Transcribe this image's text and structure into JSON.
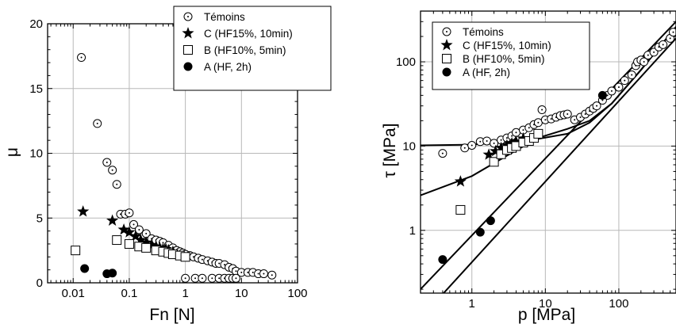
{
  "chart_data": [
    {
      "type": "scatter",
      "xlabel": "Fn [N]",
      "ylabel": "μ",
      "xscale": "log",
      "xlim": [
        0.0035,
        100
      ],
      "ylim": [
        0,
        20
      ],
      "xticks": [
        "0.01",
        "0.1",
        "1",
        "10",
        "100"
      ],
      "yticks": [
        "0",
        "5",
        "10",
        "15",
        "20"
      ],
      "grid": true,
      "legend_position": "top-right",
      "series": [
        {
          "name": "Témoins",
          "marker": "dotted-circle",
          "points": [
            [
              0.014,
              17.4
            ],
            [
              0.027,
              12.3
            ],
            [
              0.04,
              9.3
            ],
            [
              0.05,
              8.7
            ],
            [
              0.06,
              7.6
            ],
            [
              0.07,
              5.3
            ],
            [
              0.085,
              5.3
            ],
            [
              0.1,
              5.4
            ],
            [
              0.12,
              4.5
            ],
            [
              0.15,
              4.1
            ],
            [
              0.2,
              3.8
            ],
            [
              0.25,
              3.4
            ],
            [
              0.3,
              3.3
            ],
            [
              0.35,
              3.2
            ],
            [
              0.4,
              3.1
            ],
            [
              0.5,
              2.9
            ],
            [
              0.6,
              2.7
            ],
            [
              0.7,
              2.5
            ],
            [
              0.8,
              2.4
            ],
            [
              0.9,
              2.3
            ],
            [
              1.0,
              2.2
            ],
            [
              1.2,
              2.1
            ],
            [
              1.4,
              2.0
            ],
            [
              1.7,
              1.9
            ],
            [
              2.0,
              1.8
            ],
            [
              2.5,
              1.7
            ],
            [
              3.0,
              1.6
            ],
            [
              3.5,
              1.5
            ],
            [
              4.0,
              1.5
            ],
            [
              5.0,
              1.4
            ],
            [
              6.0,
              1.2
            ],
            [
              7.0,
              1.1
            ],
            [
              8.0,
              0.9
            ],
            [
              10,
              0.8
            ],
            [
              13,
              0.8
            ],
            [
              16,
              0.8
            ],
            [
              20,
              0.7
            ],
            [
              25,
              0.7
            ],
            [
              35,
              0.6
            ],
            [
              1.0,
              0.35
            ],
            [
              1.5,
              0.35
            ],
            [
              2.0,
              0.35
            ],
            [
              3.0,
              0.35
            ],
            [
              4.0,
              0.35
            ],
            [
              5.0,
              0.35
            ],
            [
              6.0,
              0.35
            ],
            [
              7.0,
              0.35
            ],
            [
              8.0,
              0.35
            ]
          ]
        },
        {
          "name": "C (HF15%, 10min)",
          "marker": "star",
          "points": [
            [
              0.015,
              5.5
            ],
            [
              0.05,
              4.8
            ],
            [
              0.08,
              4.1
            ],
            [
              0.1,
              3.9
            ],
            [
              0.13,
              3.6
            ],
            [
              0.16,
              3.3
            ],
            [
              0.2,
              3.1
            ],
            [
              0.25,
              2.9
            ],
            [
              0.3,
              2.8
            ],
            [
              0.35,
              2.7
            ],
            [
              0.4,
              2.6
            ],
            [
              0.45,
              2.6
            ],
            [
              0.5,
              2.5
            ],
            [
              0.6,
              2.4
            ]
          ]
        },
        {
          "name": "B (HF10%, 5min)",
          "marker": "square",
          "points": [
            [
              0.011,
              2.5
            ],
            [
              0.06,
              3.3
            ],
            [
              0.1,
              3.0
            ],
            [
              0.15,
              2.8
            ],
            [
              0.2,
              2.7
            ],
            [
              0.3,
              2.5
            ],
            [
              0.4,
              2.4
            ],
            [
              0.5,
              2.3
            ],
            [
              0.6,
              2.2
            ],
            [
              0.8,
              2.1
            ],
            [
              1.0,
              2.0
            ]
          ]
        },
        {
          "name": "A (HF, 2h)",
          "marker": "dot",
          "points": [
            [
              0.016,
              1.1
            ],
            [
              0.04,
              0.7
            ],
            [
              0.05,
              0.75
            ]
          ]
        }
      ]
    },
    {
      "type": "scatter",
      "xlabel": "p [MPa]",
      "ylabel": "τ [MPa]",
      "xscale": "log",
      "yscale": "log",
      "xlim": [
        0.2,
        600
      ],
      "ylim": [
        0.18,
        400
      ],
      "xticks": [
        "1",
        "10",
        "100"
      ],
      "yticks": [
        "1",
        "10",
        "100"
      ],
      "grid": true,
      "legend_position": "top-left",
      "series": [
        {
          "name": "Témoins",
          "marker": "dotted-circle",
          "points": [
            [
              0.4,
              8.2
            ],
            [
              0.8,
              9.5
            ],
            [
              1.0,
              10.2
            ],
            [
              1.3,
              11.3
            ],
            [
              1.6,
              11.5
            ],
            [
              2.0,
              10.8
            ],
            [
              2.5,
              11.8
            ],
            [
              3.0,
              12.5
            ],
            [
              3.5,
              13.2
            ],
            [
              4.0,
              14.5
            ],
            [
              5.0,
              15.5
            ],
            [
              6.0,
              16.5
            ],
            [
              7.0,
              18.0
            ],
            [
              8.0,
              19.0
            ],
            [
              9.0,
              27.0
            ],
            [
              10,
              20.5
            ],
            [
              12,
              21.0
            ],
            [
              14,
              22.0
            ],
            [
              16,
              23.0
            ],
            [
              18,
              23.5
            ],
            [
              20,
              24.0
            ],
            [
              25,
              20.5
            ],
            [
              30,
              22.0
            ],
            [
              35,
              24.0
            ],
            [
              40,
              26.0
            ],
            [
              45,
              28.0
            ],
            [
              50,
              30.0
            ],
            [
              60,
              35.0
            ],
            [
              70,
              40.0
            ],
            [
              80,
              45.0
            ],
            [
              100,
              50.0
            ],
            [
              120,
              60.0
            ],
            [
              150,
              70.0
            ],
            [
              170,
              90.0
            ],
            [
              180,
              100.0
            ],
            [
              200,
              105.0
            ],
            [
              220,
              100.0
            ],
            [
              250,
              120.0
            ],
            [
              300,
              130.0
            ],
            [
              350,
              150.0
            ],
            [
              400,
              160.0
            ],
            [
              500,
              190.0
            ],
            [
              550,
              225.0
            ]
          ]
        },
        {
          "name": "C (HF15%, 10min)",
          "marker": "star",
          "points": [
            [
              0.7,
              3.8
            ],
            [
              1.7,
              7.9
            ],
            [
              2.1,
              8.7
            ],
            [
              2.5,
              9.5
            ],
            [
              3.0,
              10.2
            ],
            [
              3.5,
              10.8
            ],
            [
              4.0,
              11.3
            ],
            [
              5.0,
              12.3
            ]
          ]
        },
        {
          "name": "B (HF10%, 5min)",
          "marker": "square",
          "points": [
            [
              0.7,
              1.75
            ],
            [
              2.0,
              6.5
            ],
            [
              2.5,
              8.0
            ],
            [
              3.0,
              9.0
            ],
            [
              3.5,
              9.5
            ],
            [
              4.0,
              10.0
            ],
            [
              5.0,
              11.0
            ],
            [
              6.0,
              11.5
            ],
            [
              7.0,
              12.5
            ],
            [
              8.0,
              14.0
            ]
          ]
        },
        {
          "name": "A (HF, 2h)",
          "marker": "dot",
          "points": [
            [
              0.4,
              0.45
            ],
            [
              1.3,
              0.95
            ],
            [
              1.8,
              1.3
            ],
            [
              60,
              40.0
            ]
          ]
        }
      ],
      "fit_lines": [
        {
          "points": [
            [
              0.2,
              10.2
            ],
            [
              1,
              10.4
            ],
            [
              3,
              11.2
            ],
            [
              8,
              12.2
            ],
            [
              20,
              14
            ],
            [
              40,
              19
            ],
            [
              80,
              32
            ],
            [
              200,
              80
            ],
            [
              600,
              260
            ]
          ]
        },
        {
          "points": [
            [
              0.2,
              2.6
            ],
            [
              1,
              4.4
            ],
            [
              3,
              7.7
            ],
            [
              8,
              12.5
            ],
            [
              20,
              16
            ],
            [
              40,
              20
            ],
            [
              80,
              32
            ],
            [
              200,
              80
            ],
            [
              600,
              260
            ]
          ]
        },
        {
          "points": [
            [
              0.2,
              0.2
            ],
            [
              600,
              300
            ]
          ]
        },
        {
          "points": [
            [
              0.2,
              0.09
            ],
            [
              600,
              190
            ]
          ]
        }
      ]
    }
  ]
}
